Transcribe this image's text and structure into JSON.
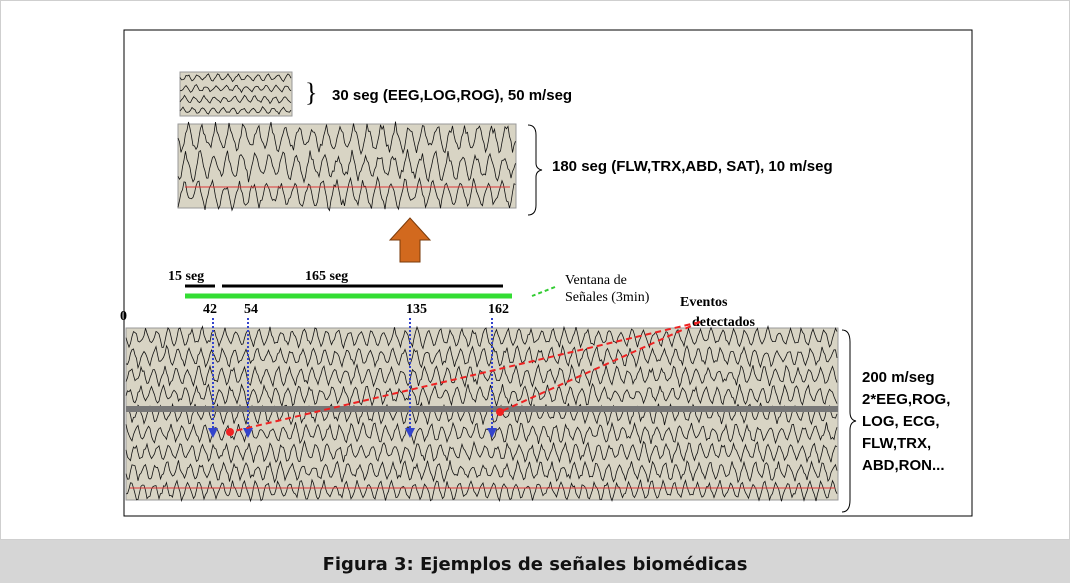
{
  "figure": {
    "top_label": "30 seg (EEG,LOG,ROG), 50 m/seg",
    "middle_label": "180 seg (FLW,TRX,ABD, SAT), 10 m/seg",
    "window": {
      "short": "15 seg",
      "long": "165 seg",
      "legend": [
        "Ventana de",
        "Señales (3min)"
      ]
    },
    "events_label": [
      "Eventos",
      "detectados"
    ],
    "origin": "0",
    "markers": [
      42,
      54,
      135,
      162
    ],
    "bottom_label": [
      "200 m/seg",
      "2*EEG,ROG,",
      "LOG, ECG,",
      "FLW,TRX,",
      "ABD,RON..."
    ]
  },
  "caption": "Figura 3: Ejemplos de señales biomédicas"
}
